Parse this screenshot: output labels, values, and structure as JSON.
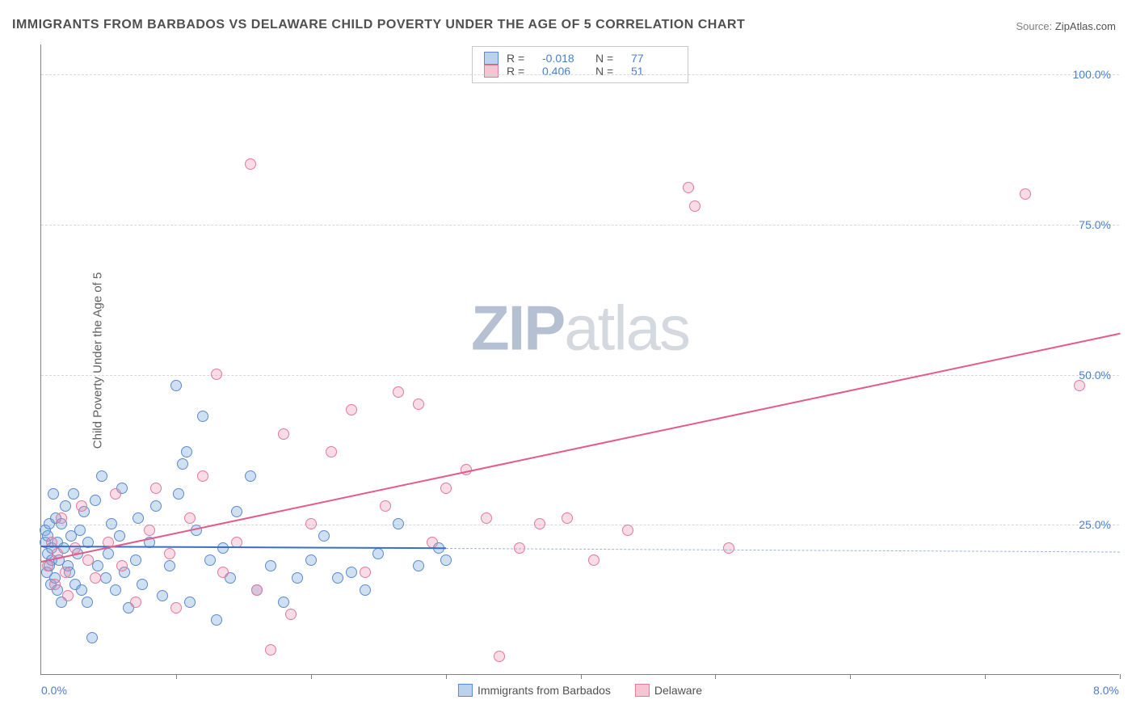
{
  "chart": {
    "type": "scatter",
    "title": "IMMIGRANTS FROM BARBADOS VS DELAWARE CHILD POVERTY UNDER THE AGE OF 5 CORRELATION CHART",
    "source_prefix": "Source: ",
    "source_link": "ZipAtlas.com",
    "ylabel": "Child Poverty Under the Age of 5",
    "watermark_a": "ZIP",
    "watermark_b": "atlas",
    "background_color": "#ffffff",
    "grid_color": "#d8d8d8",
    "axis_color": "#808080",
    "tick_color": "#4a7ec9",
    "xlim": [
      0.0,
      8.0
    ],
    "ylim": [
      0.0,
      105.0
    ],
    "yticks": [
      {
        "v": 25.0,
        "label": "25.0%"
      },
      {
        "v": 50.0,
        "label": "50.0%"
      },
      {
        "v": 75.0,
        "label": "75.0%"
      },
      {
        "v": 100.0,
        "label": "100.0%"
      }
    ],
    "xticks_minor": [
      1.0,
      2.0,
      3.0,
      4.0,
      5.0,
      6.0,
      7.0,
      8.0
    ],
    "xtick_labels": [
      {
        "v": 0.0,
        "label": "0.0%",
        "align": "left"
      },
      {
        "v": 8.0,
        "label": "8.0%",
        "align": "right"
      }
    ],
    "series": [
      {
        "name": "Immigrants from Barbados",
        "color_fill": "rgba(120,165,220,0.35)",
        "color_stroke": "#5a8bd0",
        "color_trend": "#3a6fc4",
        "marker_size": 14,
        "R": "-0.018",
        "N": "77",
        "trend": {
          "x1": 0.0,
          "y1": 21.5,
          "x2": 3.0,
          "y2": 21.2,
          "extend_x": 8.0,
          "extend_y": 20.6
        },
        "points": [
          [
            0.03,
            22
          ],
          [
            0.03,
            24
          ],
          [
            0.04,
            17
          ],
          [
            0.05,
            20
          ],
          [
            0.05,
            23
          ],
          [
            0.06,
            18
          ],
          [
            0.06,
            25
          ],
          [
            0.07,
            15
          ],
          [
            0.08,
            21
          ],
          [
            0.08,
            19
          ],
          [
            0.09,
            30
          ],
          [
            0.1,
            16
          ],
          [
            0.11,
            26
          ],
          [
            0.12,
            22
          ],
          [
            0.12,
            14
          ],
          [
            0.13,
            19
          ],
          [
            0.15,
            25
          ],
          [
            0.15,
            12
          ],
          [
            0.17,
            21
          ],
          [
            0.18,
            28
          ],
          [
            0.2,
            18
          ],
          [
            0.21,
            17
          ],
          [
            0.22,
            23
          ],
          [
            0.24,
            30
          ],
          [
            0.25,
            15
          ],
          [
            0.27,
            20
          ],
          [
            0.29,
            24
          ],
          [
            0.3,
            14
          ],
          [
            0.32,
            27
          ],
          [
            0.34,
            12
          ],
          [
            0.35,
            22
          ],
          [
            0.38,
            6
          ],
          [
            0.4,
            29
          ],
          [
            0.42,
            18
          ],
          [
            0.45,
            33
          ],
          [
            0.48,
            16
          ],
          [
            0.5,
            20
          ],
          [
            0.52,
            25
          ],
          [
            0.55,
            14
          ],
          [
            0.58,
            23
          ],
          [
            0.6,
            31
          ],
          [
            0.62,
            17
          ],
          [
            0.65,
            11
          ],
          [
            0.7,
            19
          ],
          [
            0.72,
            26
          ],
          [
            0.75,
            15
          ],
          [
            0.8,
            22
          ],
          [
            0.85,
            28
          ],
          [
            0.9,
            13
          ],
          [
            0.95,
            18
          ],
          [
            1.0,
            48
          ],
          [
            1.02,
            30
          ],
          [
            1.05,
            35
          ],
          [
            1.08,
            37
          ],
          [
            1.1,
            12
          ],
          [
            1.15,
            24
          ],
          [
            1.2,
            43
          ],
          [
            1.25,
            19
          ],
          [
            1.3,
            9
          ],
          [
            1.35,
            21
          ],
          [
            1.4,
            16
          ],
          [
            1.45,
            27
          ],
          [
            1.55,
            33
          ],
          [
            1.6,
            14
          ],
          [
            1.7,
            18
          ],
          [
            1.8,
            12
          ],
          [
            1.9,
            16
          ],
          [
            2.0,
            19
          ],
          [
            2.1,
            23
          ],
          [
            2.2,
            16
          ],
          [
            2.3,
            17
          ],
          [
            2.4,
            14
          ],
          [
            2.5,
            20
          ],
          [
            2.65,
            25
          ],
          [
            2.8,
            18
          ],
          [
            2.95,
            21
          ],
          [
            3.0,
            19
          ]
        ]
      },
      {
        "name": "Delaware",
        "color_fill": "rgba(235,140,170,0.30)",
        "color_stroke": "#e27a9a",
        "color_trend": "#e55b88",
        "marker_size": 14,
        "R": "0.406",
        "N": "51",
        "trend": {
          "x1": 0.0,
          "y1": 19.0,
          "x2": 8.0,
          "y2": 57.0
        },
        "points": [
          [
            0.05,
            18
          ],
          [
            0.08,
            22
          ],
          [
            0.1,
            15
          ],
          [
            0.12,
            20
          ],
          [
            0.15,
            26
          ],
          [
            0.18,
            17
          ],
          [
            0.2,
            13
          ],
          [
            0.25,
            21
          ],
          [
            0.3,
            28
          ],
          [
            0.35,
            19
          ],
          [
            0.4,
            16
          ],
          [
            0.5,
            22
          ],
          [
            0.55,
            30
          ],
          [
            0.6,
            18
          ],
          [
            0.7,
            12
          ],
          [
            0.8,
            24
          ],
          [
            0.85,
            31
          ],
          [
            0.95,
            20
          ],
          [
            1.0,
            11
          ],
          [
            1.1,
            26
          ],
          [
            1.2,
            33
          ],
          [
            1.3,
            50
          ],
          [
            1.35,
            17
          ],
          [
            1.45,
            22
          ],
          [
            1.55,
            85
          ],
          [
            1.6,
            14
          ],
          [
            1.7,
            4
          ],
          [
            1.8,
            40
          ],
          [
            1.85,
            10
          ],
          [
            2.0,
            25
          ],
          [
            2.15,
            37
          ],
          [
            2.3,
            44
          ],
          [
            2.4,
            17
          ],
          [
            2.55,
            28
          ],
          [
            2.65,
            47
          ],
          [
            2.8,
            45
          ],
          [
            2.9,
            22
          ],
          [
            3.0,
            31
          ],
          [
            3.15,
            34
          ],
          [
            3.3,
            26
          ],
          [
            3.4,
            3
          ],
          [
            3.55,
            21
          ],
          [
            3.7,
            25
          ],
          [
            3.9,
            26
          ],
          [
            4.1,
            19
          ],
          [
            4.35,
            24
          ],
          [
            4.8,
            81
          ],
          [
            4.85,
            78
          ],
          [
            5.1,
            21
          ],
          [
            7.3,
            80
          ],
          [
            7.7,
            48
          ]
        ]
      }
    ],
    "legend_top_labels": {
      "R": "R =",
      "N": "N ="
    }
  }
}
